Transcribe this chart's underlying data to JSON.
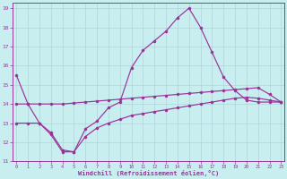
{
  "xlabel": "Windchill (Refroidissement éolien,°C)",
  "bg_color": "#c8eef0",
  "line_color": "#993399",
  "grid_color": "#b0d4d8",
  "xlim": [
    -0.3,
    23.3
  ],
  "ylim": [
    11,
    19.3
  ],
  "xticks": [
    0,
    1,
    2,
    3,
    4,
    5,
    6,
    7,
    8,
    9,
    10,
    11,
    12,
    13,
    14,
    15,
    16,
    17,
    18,
    19,
    20,
    21,
    22,
    23
  ],
  "yticks": [
    11,
    12,
    13,
    14,
    15,
    16,
    17,
    18,
    19
  ],
  "curve1_x": [
    0,
    1,
    2,
    3,
    4,
    5,
    6,
    7,
    8,
    9,
    10,
    11,
    12,
    13,
    14,
    15,
    16,
    17,
    18,
    19,
    20,
    21,
    22,
    23
  ],
  "curve1_y": [
    15.5,
    14.0,
    13.0,
    12.4,
    11.5,
    11.5,
    12.7,
    13.1,
    13.8,
    14.1,
    15.9,
    16.8,
    17.3,
    17.8,
    18.5,
    19.0,
    18.0,
    16.7,
    15.4,
    14.7,
    14.2,
    14.1,
    14.1,
    14.1
  ],
  "curve2_x": [
    0,
    1,
    2,
    3,
    4,
    5,
    6,
    7,
    8,
    9,
    10,
    11,
    12,
    13,
    14,
    15,
    16,
    17,
    18,
    19,
    20,
    21,
    22,
    23
  ],
  "curve2_y": [
    14.0,
    14.0,
    14.0,
    14.0,
    14.0,
    14.05,
    14.1,
    14.15,
    14.2,
    14.25,
    14.3,
    14.35,
    14.4,
    14.45,
    14.5,
    14.55,
    14.6,
    14.65,
    14.7,
    14.75,
    14.8,
    14.85,
    14.5,
    14.1
  ],
  "curve3_x": [
    0,
    1,
    2,
    3,
    4,
    5,
    6,
    7,
    8,
    9,
    10,
    11,
    12,
    13,
    14,
    15,
    16,
    17,
    18,
    19,
    20,
    21,
    22,
    23
  ],
  "curve3_y": [
    13.0,
    13.0,
    13.0,
    12.5,
    11.6,
    11.5,
    12.3,
    12.75,
    13.0,
    13.2,
    13.4,
    13.5,
    13.6,
    13.7,
    13.8,
    13.9,
    14.0,
    14.1,
    14.2,
    14.3,
    14.35,
    14.3,
    14.2,
    14.1
  ]
}
